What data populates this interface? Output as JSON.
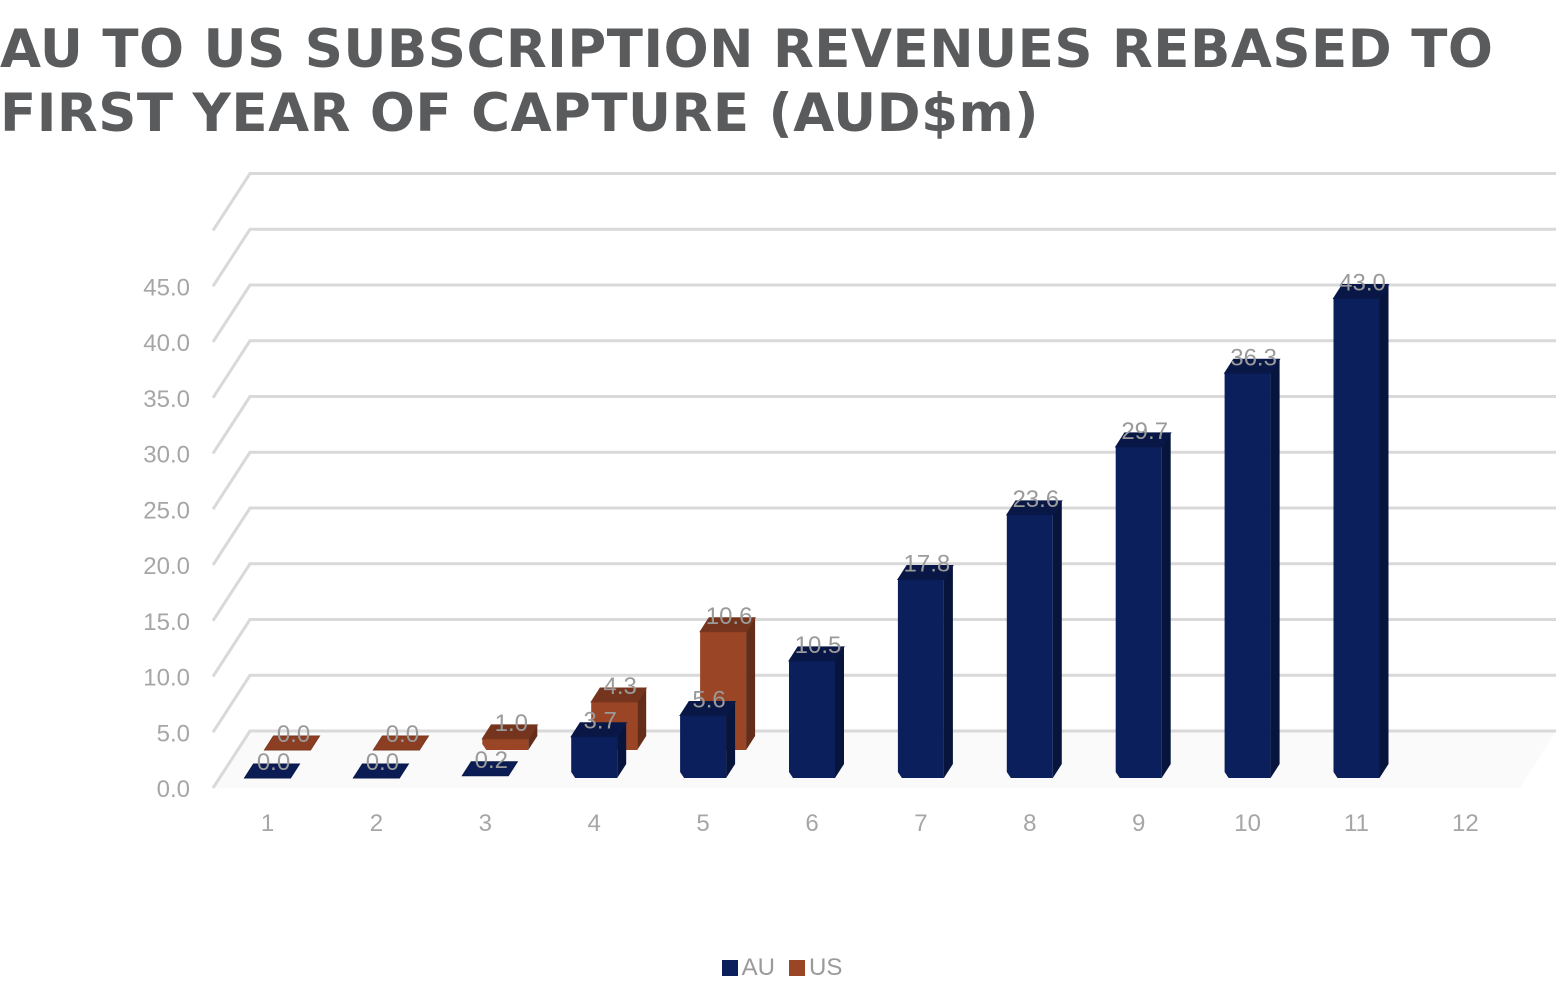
{
  "chart_data": {
    "type": "bar",
    "title_lines": [
      "AU TO US SUBSCRIPTION REVENUES REBASED TO",
      "FIRST YEAR OF CAPTURE (AUD$m)"
    ],
    "categories": [
      "1",
      "2",
      "3",
      "4",
      "5",
      "6",
      "7",
      "8",
      "9",
      "10",
      "11",
      "12"
    ],
    "series": [
      {
        "name": "AU",
        "color": "#0b1f5c",
        "values": [
          0.0,
          0.0,
          0.2,
          3.7,
          5.6,
          10.5,
          17.8,
          23.6,
          29.7,
          36.3,
          43.0,
          null
        ],
        "labels": [
          "0.0",
          "0.0",
          "0.2",
          "3.7",
          "5.6",
          "10.5",
          "17.8",
          "23.6",
          "29.7",
          "36.3",
          "43.0",
          ""
        ]
      },
      {
        "name": "US",
        "color": "#9a4526",
        "values": [
          0.0,
          0.0,
          1.0,
          4.3,
          10.6,
          null,
          null,
          null,
          null,
          null,
          null,
          null
        ],
        "labels": [
          "0.0",
          "0.0",
          "1.0",
          "4.3",
          "10.6",
          "",
          "",
          "",
          "",
          "",
          "",
          ""
        ]
      }
    ],
    "y_ticks": [
      "0.0",
      "5.0",
      "10.0",
      "15.0",
      "20.0",
      "25.0",
      "30.0",
      "35.0",
      "40.0",
      "45.0"
    ],
    "ylim": [
      0,
      50
    ],
    "grid": true,
    "three_d": true,
    "legend_position": "bottom"
  }
}
